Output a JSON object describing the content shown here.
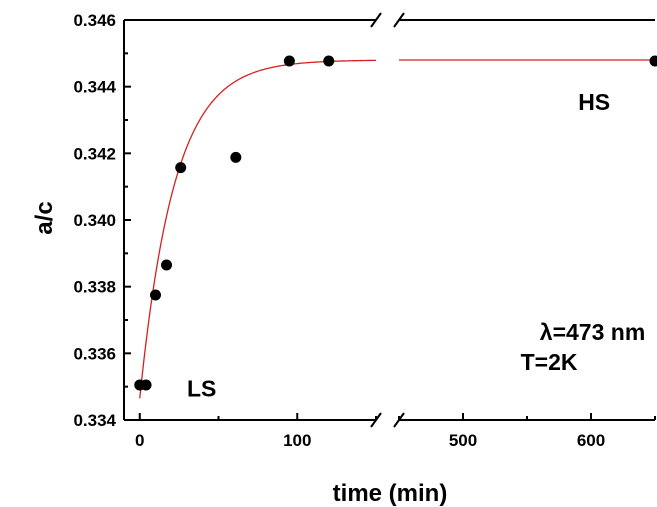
{
  "chart_data": {
    "type": "scatter",
    "title": "",
    "xlabel": "time (min)",
    "ylabel": "a/c",
    "x_axis": {
      "broken": true,
      "segments": [
        {
          "range": [
            -10,
            150
          ],
          "ticks": [
            0,
            100
          ]
        },
        {
          "range": [
            450,
            650
          ],
          "ticks": [
            500,
            600
          ]
        }
      ]
    },
    "ylim": [
      0.334,
      0.346
    ],
    "yticks": [
      "0.334",
      "0.336",
      "0.338",
      "0.340",
      "0.342",
      "0.344",
      "0.346"
    ],
    "grid": false,
    "series": [
      {
        "kind": "points",
        "color": "#000000",
        "x": [
          0,
          4,
          10,
          17,
          26,
          61,
          95,
          120,
          650
        ],
        "y": [
          0.33505,
          0.33505,
          0.33775,
          0.33865,
          0.34157,
          0.34188,
          0.34477,
          0.34477,
          0.34477
        ]
      },
      {
        "kind": "fit",
        "color": "#d62020",
        "model": "exponential rise",
        "y0": 0.33465,
        "y_inf": 0.3448,
        "tau_min": 22,
        "x_range": [
          0,
          650
        ]
      }
    ],
    "annotations": [
      {
        "text": "HS",
        "at": [
          590,
          0.3433
        ]
      },
      {
        "text": "LS",
        "at": [
          30,
          0.3347
        ]
      },
      {
        "text": "λ=473 nm",
        "at": [
          560,
          0.3364
        ]
      },
      {
        "text": "T=2K",
        "at": [
          545,
          0.3355
        ]
      }
    ]
  }
}
